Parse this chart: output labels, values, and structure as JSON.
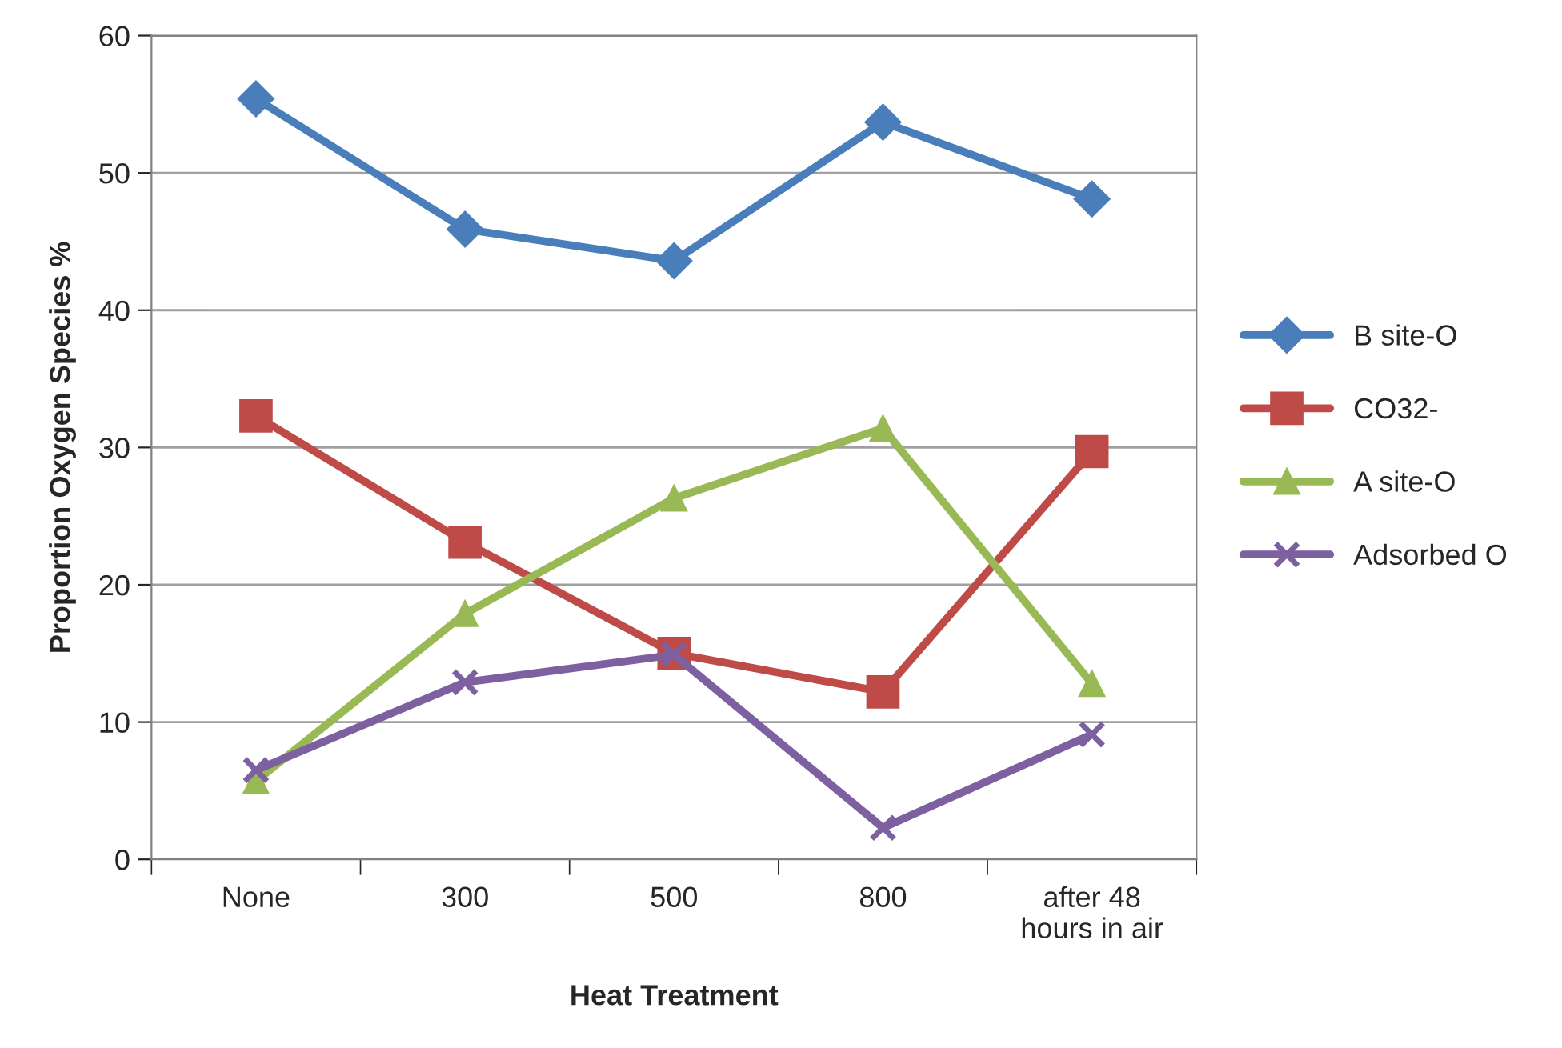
{
  "chart_data": {
    "type": "line",
    "xlabel": "Heat Treatment",
    "ylabel": "Proportion Oxygen Species %",
    "categories": [
      "None",
      "300",
      "500",
      "800",
      "after 48\nhours in air"
    ],
    "series": [
      {
        "name": "B site-O",
        "color": "#4a7ebb",
        "marker": "diamond",
        "values": [
          55.4,
          45.9,
          43.6,
          53.7,
          48.1
        ]
      },
      {
        "name": "CO32-",
        "color": "#be4b48",
        "marker": "square",
        "values": [
          32.3,
          23.1,
          15.0,
          12.2,
          29.7
        ]
      },
      {
        "name": "A site-O",
        "color": "#98b954",
        "marker": "triangle",
        "values": [
          5.7,
          17.9,
          26.3,
          31.4,
          12.8
        ]
      },
      {
        "name": "Adsorbed O",
        "color": "#7d60a0",
        "marker": "cross",
        "values": [
          6.5,
          12.9,
          14.9,
          2.3,
          9.1
        ]
      }
    ],
    "ylim": [
      0,
      60
    ],
    "yticks": [
      0,
      10,
      20,
      30,
      40,
      50,
      60
    ],
    "grid": "y",
    "legend": "right",
    "line_style": "solid"
  }
}
